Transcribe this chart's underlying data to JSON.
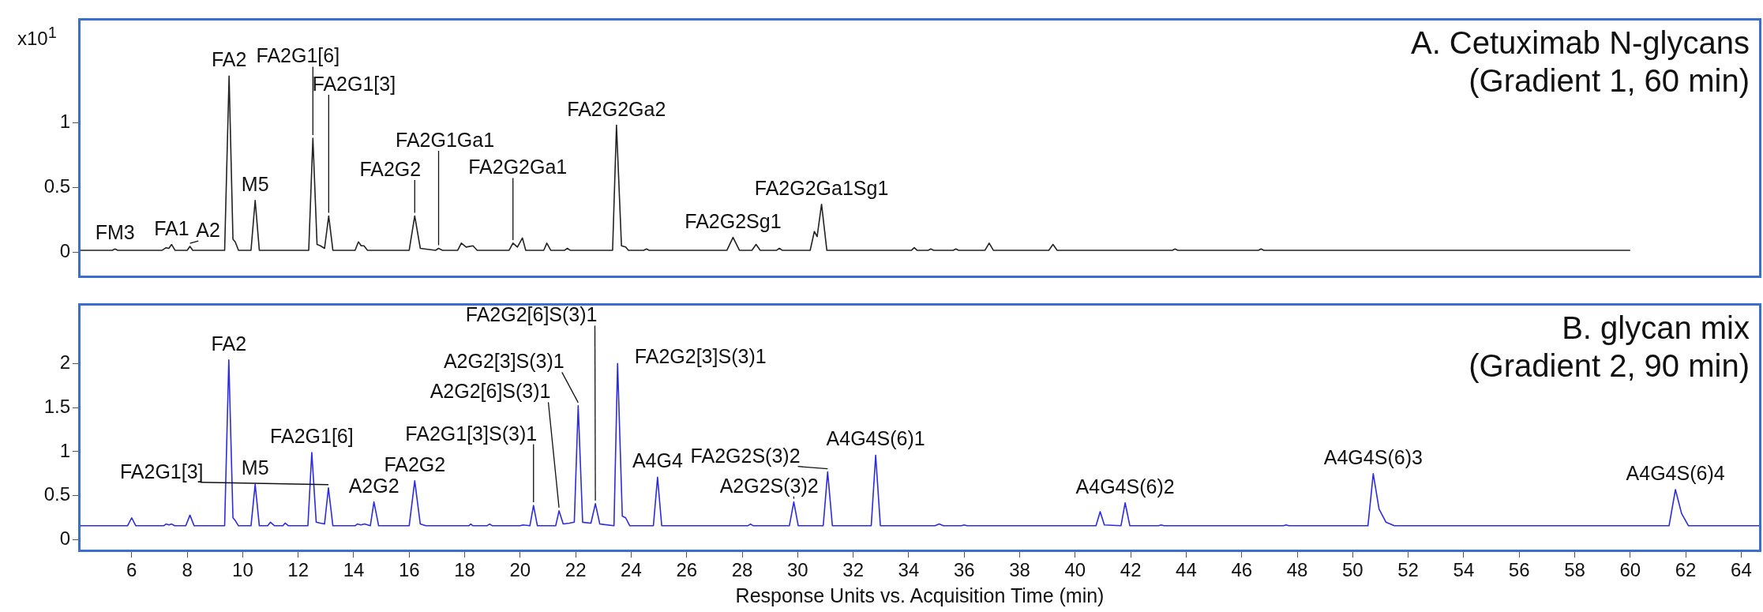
{
  "chart_data": [
    {
      "type": "line",
      "title": "A. Cetuximab N-glycans",
      "subtitle": "(Gradient 1, 60 min)",
      "ylabel": "x10$^{1}$",
      "tick_labels": "y",
      "legend": false,
      "marker": "none",
      "line_style": "solid",
      "xlim": [
        4.1,
        64.7
      ],
      "xticks": [
        6,
        8,
        10,
        12,
        14,
        16,
        18,
        20,
        22,
        24,
        26,
        28,
        30,
        32,
        34,
        36,
        38,
        40,
        42,
        44,
        46,
        48,
        50,
        52,
        54,
        56,
        58,
        60,
        62,
        64
      ],
      "ylim": [
        -0.19,
        1.8
      ],
      "yticks": [
        0,
        0.5,
        1
      ],
      "series": [
        {
          "color": "#222222",
          "x": [
            4.1,
            5.3,
            5.4,
            5.5,
            7.1,
            7.24,
            7.34,
            7.44,
            7.56,
            8.0,
            8.1,
            8.2,
            9.35,
            9.51,
            9.65,
            9.73,
            9.85,
            10.3,
            10.45,
            10.6,
            12.38,
            12.53,
            12.68,
            12.8,
            12.95,
            13.1,
            13.25,
            14.05,
            14.17,
            14.27,
            14.37,
            14.5,
            16.0,
            16.2,
            16.4,
            16.95,
            17.06,
            17.2,
            17.75,
            17.88,
            18.05,
            18.3,
            18.45,
            19.6,
            19.74,
            19.9,
            20.08,
            20.2,
            20.85,
            20.96,
            21.1,
            21.6,
            21.7,
            21.8,
            23.33,
            23.47,
            23.65,
            23.8,
            23.9,
            24.45,
            24.55,
            24.65,
            27.45,
            27.67,
            27.9,
            28.35,
            28.5,
            28.65,
            29.24,
            29.34,
            29.44,
            30.45,
            30.6,
            30.7,
            30.86,
            31.05,
            34.1,
            34.2,
            34.3,
            34.7,
            34.8,
            34.9,
            35.6,
            35.7,
            35.8,
            36.75,
            36.9,
            37.05,
            39.05,
            39.2,
            39.35,
            43.5,
            43.6,
            43.7,
            46.6,
            46.7,
            46.8,
            60
          ],
          "values": [
            0.015,
            0.015,
            0.025,
            0.015,
            0.015,
            0.035,
            0.03,
            0.06,
            0.015,
            0.015,
            0.045,
            0.015,
            0.015,
            1.36,
            0.1,
            0.08,
            0.015,
            0.015,
            0.4,
            0.015,
            0.015,
            0.88,
            0.06,
            0.05,
            0.03,
            0.28,
            0.015,
            0.015,
            0.08,
            0.05,
            0.05,
            0.015,
            0.015,
            0.28,
            0.03,
            0.015,
            0.03,
            0.015,
            0.015,
            0.07,
            0.04,
            0.05,
            0.015,
            0.015,
            0.07,
            0.04,
            0.11,
            0.015,
            0.015,
            0.07,
            0.015,
            0.015,
            0.03,
            0.015,
            0.015,
            0.98,
            0.05,
            0.04,
            0.015,
            0.015,
            0.025,
            0.015,
            0.015,
            0.115,
            0.015,
            0.015,
            0.06,
            0.015,
            0.015,
            0.03,
            0.015,
            0.015,
            0.16,
            0.12,
            0.37,
            0.015,
            0.015,
            0.035,
            0.015,
            0.015,
            0.025,
            0.015,
            0.015,
            0.025,
            0.015,
            0.015,
            0.07,
            0.015,
            0.015,
            0.06,
            0.015,
            0.015,
            0.025,
            0.015,
            0.015,
            0.025,
            0.015,
            0.015
          ]
        }
      ],
      "annotations": [
        {
          "text": "FM3",
          "x": 5.4,
          "y": 0.025
        },
        {
          "text": "FA1",
          "x": 7.44,
          "y": 0.06
        },
        {
          "text": "A2",
          "x": 8.1,
          "y": 0.045
        },
        {
          "text": "FA2",
          "x": 9.51,
          "y": 1.36
        },
        {
          "text": "M5",
          "x": 10.45,
          "y": 0.4
        },
        {
          "text": "FA2G1[6]",
          "x": 12.53,
          "y": 0.88
        },
        {
          "text": "FA2G1[3]",
          "x": 13.1,
          "y": 0.28
        },
        {
          "text": "FA2G2",
          "x": 16.2,
          "y": 0.28
        },
        {
          "text": "FA2G1Ga1",
          "x": 17.06,
          "y": 0.03
        },
        {
          "text": "FA2G2Ga1",
          "x": 19.74,
          "y": 0.07
        },
        {
          "text": "FA2G2Ga2",
          "x": 23.47,
          "y": 0.98
        },
        {
          "text": "FA2G2Sg1",
          "x": 27.67,
          "y": 0.115
        },
        {
          "text": "FA2G2Ga1Sg1",
          "x": 30.86,
          "y": 0.37
        }
      ]
    },
    {
      "type": "line",
      "title": "B. glycan mix",
      "subtitle": "(Gradient 2, 90 min)",
      "xlabel": "Response Units vs. Acquisition Time (min)",
      "legend": false,
      "marker": "none",
      "line_style": "solid",
      "xlim": [
        4.1,
        64.7
      ],
      "xticks": [
        6,
        8,
        10,
        12,
        14,
        16,
        18,
        20,
        22,
        24,
        26,
        28,
        30,
        32,
        34,
        36,
        38,
        40,
        42,
        44,
        46,
        48,
        50,
        52,
        54,
        56,
        58,
        60,
        62,
        64
      ],
      "ylim": [
        -0.13,
        2.67
      ],
      "yticks": [
        0,
        0.5,
        1,
        1.5,
        2
      ],
      "series": [
        {
          "color": "#2b2be0",
          "x": [
            4.1,
            5.85,
            6.0,
            6.15,
            7.15,
            7.24,
            7.34,
            7.44,
            7.55,
            7.95,
            8.1,
            8.25,
            9.35,
            9.5,
            9.65,
            9.73,
            9.85,
            10.3,
            10.45,
            10.6,
            10.9,
            11.0,
            11.15,
            11.45,
            11.53,
            11.65,
            12.35,
            12.49,
            12.65,
            12.8,
            12.95,
            13.09,
            13.25,
            14.05,
            14.13,
            14.26,
            14.39,
            14.6,
            14.73,
            14.9,
            16.0,
            16.2,
            16.4,
            16.6,
            18.15,
            18.22,
            18.3,
            18.8,
            18.9,
            19.0,
            20.0,
            20.1,
            20.35,
            20.48,
            20.62,
            21.28,
            21.4,
            21.55,
            21.77,
            21.95,
            22.09,
            22.25,
            22.55,
            22.71,
            22.87,
            23.38,
            23.51,
            23.68,
            23.8,
            23.95,
            24.8,
            24.95,
            25.1,
            28.2,
            28.3,
            28.4,
            29.7,
            29.86,
            30.02,
            30.92,
            31.08,
            31.25,
            32.65,
            32.81,
            32.98,
            34.95,
            35.1,
            35.25,
            35.9,
            36.0,
            36.1,
            40.75,
            40.9,
            41.05,
            41.65,
            41.8,
            41.97,
            43.0,
            43.1,
            43.2,
            47.5,
            47.6,
            47.7,
            50.55,
            50.74,
            50.95,
            51.2,
            51.5,
            61.4,
            61.63,
            61.85,
            62.1,
            64.7
          ],
          "values": [
            0.16,
            0.16,
            0.25,
            0.16,
            0.16,
            0.18,
            0.17,
            0.18,
            0.16,
            0.16,
            0.28,
            0.16,
            0.16,
            2.04,
            0.25,
            0.22,
            0.16,
            0.16,
            0.63,
            0.16,
            0.16,
            0.2,
            0.16,
            0.16,
            0.19,
            0.16,
            0.16,
            0.99,
            0.2,
            0.19,
            0.18,
            0.59,
            0.16,
            0.16,
            0.18,
            0.17,
            0.18,
            0.16,
            0.43,
            0.16,
            0.16,
            0.67,
            0.18,
            0.16,
            0.16,
            0.18,
            0.16,
            0.16,
            0.18,
            0.16,
            0.16,
            0.17,
            0.16,
            0.39,
            0.16,
            0.16,
            0.33,
            0.18,
            0.19,
            0.2,
            1.52,
            0.2,
            0.19,
            0.41,
            0.18,
            0.16,
            2.0,
            0.27,
            0.25,
            0.16,
            0.16,
            0.71,
            0.16,
            0.16,
            0.18,
            0.16,
            0.16,
            0.43,
            0.16,
            0.16,
            0.77,
            0.16,
            0.16,
            0.96,
            0.16,
            0.16,
            0.18,
            0.16,
            0.16,
            0.17,
            0.16,
            0.16,
            0.32,
            0.17,
            0.16,
            0.42,
            0.16,
            0.16,
            0.17,
            0.16,
            0.16,
            0.17,
            0.16,
            0.16,
            0.75,
            0.35,
            0.2,
            0.16,
            0.16,
            0.57,
            0.3,
            0.16,
            0.16
          ]
        }
      ],
      "annotations": [
        {
          "text": "FA2",
          "x": 9.5,
          "y": 2.04
        },
        {
          "text": "M5",
          "x": 10.45,
          "y": 0.63
        },
        {
          "text": "FA2G1[6]",
          "x": 12.49,
          "y": 0.99
        },
        {
          "text": "FA2G1[3]",
          "x": 13.09,
          "y": 0.59
        },
        {
          "text": "A2G2",
          "x": 14.73,
          "y": 0.43
        },
        {
          "text": "FA2G2",
          "x": 16.2,
          "y": 0.67
        },
        {
          "text": "FA2G1[3]S(3)1",
          "x": 20.48,
          "y": 0.39
        },
        {
          "text": "A2G2[6]S(3)1",
          "x": 21.4,
          "y": 0.33
        },
        {
          "text": "A2G2[3]S(3)1",
          "x": 22.09,
          "y": 1.52
        },
        {
          "text": "FA2G2[6]S(3)1",
          "x": 22.71,
          "y": 0.41
        },
        {
          "text": "FA2G2[3]S(3)1",
          "x": 23.51,
          "y": 2.0
        },
        {
          "text": "A4G4",
          "x": 24.95,
          "y": 0.71
        },
        {
          "text": "A2G2S(3)2",
          "x": 29.86,
          "y": 0.43
        },
        {
          "text": "FA2G2S(3)2",
          "x": 31.08,
          "y": 0.77
        },
        {
          "text": "A4G4S(6)1",
          "x": 32.81,
          "y": 0.96
        },
        {
          "text": "A4G4S(6)2",
          "x": 41.8,
          "y": 0.42
        },
        {
          "text": "A4G4S(6)3",
          "x": 50.74,
          "y": 0.75
        },
        {
          "text": "A4G4S(6)4",
          "x": 61.63,
          "y": 0.57
        }
      ]
    }
  ]
}
